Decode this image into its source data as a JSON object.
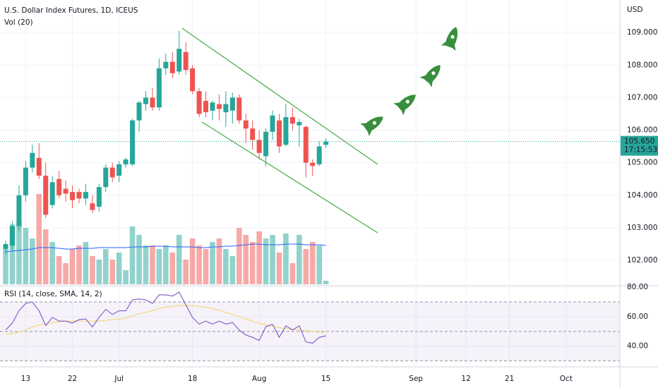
{
  "chart_data": {
    "type": "candlestick",
    "title": "U.S. Dollar Index Futures, 1D, ICEUS",
    "currency": "USD",
    "up_color": "#26a69a",
    "down_color": "#ef5350",
    "open": [
      102.35,
      102.45,
      103.05,
      104.0,
      104.85,
      105.15,
      104.6,
      103.7,
      104.5,
      104.2,
      104.1,
      104.1,
      103.9,
      103.75,
      103.65,
      104.25,
      104.85,
      104.6,
      104.95,
      104.95,
      106.3,
      106.8,
      107.0,
      106.7,
      107.9,
      108.1,
      107.8,
      108.4,
      107.9,
      107.2,
      106.9,
      106.6,
      106.8,
      106.55,
      106.6,
      107.0,
      106.3,
      106.05,
      105.7,
      105.2,
      105.95,
      106.3,
      105.55,
      106.4,
      106.15,
      106.1,
      105.0,
      104.95,
      105.55
    ],
    "high": [
      102.6,
      103.2,
      104.3,
      105.05,
      105.55,
      105.6,
      105.0,
      104.6,
      104.75,
      104.45,
      104.3,
      104.2,
      104.35,
      104.0,
      104.35,
      104.95,
      105.0,
      105.05,
      105.15,
      106.35,
      106.9,
      107.2,
      107.3,
      108.2,
      108.35,
      108.4,
      109.05,
      108.7,
      108.0,
      107.3,
      107.2,
      106.9,
      107.1,
      107.2,
      107.15,
      107.1,
      106.5,
      106.3,
      106.0,
      106.05,
      106.6,
      106.5,
      106.8,
      106.7,
      106.35,
      106.15,
      105.1,
      105.65,
      105.75
    ],
    "low": [
      102.2,
      102.3,
      102.9,
      103.8,
      104.7,
      104.5,
      103.3,
      103.6,
      103.9,
      103.8,
      103.6,
      103.75,
      103.7,
      103.45,
      103.5,
      104.1,
      104.4,
      104.4,
      104.85,
      104.9,
      105.95,
      106.6,
      106.6,
      106.6,
      107.7,
      107.6,
      107.7,
      107.7,
      107.1,
      106.4,
      106.4,
      106.3,
      106.3,
      106.1,
      106.2,
      106.2,
      105.6,
      105.4,
      105.1,
      104.9,
      105.7,
      105.3,
      105.5,
      106.0,
      105.5,
      104.55,
      104.6,
      104.9,
      105.45
    ],
    "close": [
      102.5,
      103.05,
      104.0,
      104.85,
      105.3,
      104.6,
      103.4,
      104.4,
      104.0,
      104.05,
      103.85,
      103.9,
      104.1,
      103.55,
      104.25,
      104.85,
      104.55,
      104.95,
      105.1,
      106.3,
      106.85,
      107.0,
      106.7,
      107.9,
      108.1,
      107.75,
      108.5,
      107.85,
      107.2,
      106.5,
      106.55,
      106.85,
      106.65,
      106.8,
      107.0,
      106.3,
      106.05,
      105.7,
      105.3,
      105.95,
      106.45,
      105.5,
      106.4,
      106.2,
      106.25,
      105.0,
      104.9,
      105.5,
      105.65
    ],
    "xlim": [
      -0.85,
      92.06
    ],
    "xticks": [
      {
        "value": 3,
        "label": "13"
      },
      {
        "value": 10,
        "label": "22"
      },
      {
        "value": 17,
        "label": "Jul"
      },
      {
        "value": 28,
        "label": "18"
      },
      {
        "value": 38,
        "label": "Aug"
      },
      {
        "value": 48,
        "label": "15"
      },
      {
        "value": 61.5,
        "label": "Sep"
      },
      {
        "value": 69,
        "label": "12"
      },
      {
        "value": 75.5,
        "label": "21"
      },
      {
        "value": 84,
        "label": "Oct"
      }
    ],
    "ylim": [
      101.22,
      110.0
    ],
    "yticks": [
      {
        "value": 102,
        "label": "102.000"
      },
      {
        "value": 103,
        "label": "103.000"
      },
      {
        "value": 104,
        "label": "104.000"
      },
      {
        "value": 105,
        "label": "105.000"
      },
      {
        "value": 106,
        "label": "106.000"
      },
      {
        "value": 107,
        "label": "107.000"
      },
      {
        "value": 108,
        "label": "108.000"
      },
      {
        "value": 109,
        "label": "109.000"
      }
    ],
    "grid": true,
    "last_price": {
      "value": 105.65,
      "label": "105.650"
    },
    "countdown": "17:15:53",
    "volume": {
      "title": "Vol (20)",
      "vlim": [
        0,
        130
      ],
      "values": [
        50,
        85,
        90,
        80,
        65,
        128,
        78,
        60,
        40,
        30,
        50,
        55,
        60,
        40,
        35,
        50,
        35,
        45,
        20,
        82,
        70,
        55,
        55,
        50,
        55,
        45,
        70,
        35,
        65,
        55,
        50,
        60,
        65,
        50,
        40,
        80,
        70,
        60,
        75,
        65,
        70,
        45,
        72,
        30,
        70,
        50,
        60,
        55,
        5
      ],
      "ma": [
        46,
        47,
        48,
        49,
        50,
        52,
        52,
        52,
        51,
        50,
        50,
        51,
        51,
        51,
        52,
        52,
        52,
        52,
        52,
        53,
        53,
        53,
        54,
        54,
        54,
        53,
        53,
        53,
        53,
        52,
        52,
        53,
        53,
        54,
        54,
        55,
        56,
        57,
        57,
        56,
        56,
        56,
        57,
        57,
        57,
        56,
        56,
        56,
        55
      ],
      "ma_color": "#2962ff"
    },
    "rsi": {
      "title": "RSI (14, close, SMA, 14, 2)",
      "rlim": [
        26,
        81
      ],
      "rticks": [
        {
          "value": 40,
          "label": "40.00"
        },
        {
          "value": 60,
          "label": "60.00"
        },
        {
          "value": 80,
          "label": "80.00"
        }
      ],
      "bands": [
        30,
        50,
        70
      ],
      "values": [
        51,
        55.7,
        64,
        69,
        70,
        64,
        54,
        59.5,
        57,
        57,
        55.7,
        58,
        58.5,
        53,
        59.5,
        65,
        61.5,
        64,
        64,
        71.4,
        72,
        71.4,
        69,
        74.8,
        74.8,
        74,
        76.7,
        68,
        59.5,
        55,
        57,
        55,
        57,
        55,
        56,
        51,
        47.6,
        46,
        43.8,
        53.3,
        54.8,
        46,
        53.8,
        51,
        53.8,
        42.9,
        42,
        46,
        47
      ],
      "sma": [
        48,
        48.5,
        49.5,
        51,
        53,
        54.5,
        55,
        56,
        56.5,
        57,
        57,
        57,
        57,
        57,
        57,
        57.5,
        58,
        58.5,
        59,
        60.5,
        62,
        63,
        64,
        65.5,
        66.5,
        67,
        67.5,
        67.6,
        67.5,
        67,
        66.5,
        65.5,
        64.5,
        63,
        61.5,
        60,
        58.5,
        57,
        55.5,
        54.5,
        53.5,
        52.5,
        52,
        51.5,
        51,
        50.5,
        50,
        49.5,
        49.5
      ],
      "color": "#7e57c2",
      "sma_color": "#f5d76e"
    }
  }
}
